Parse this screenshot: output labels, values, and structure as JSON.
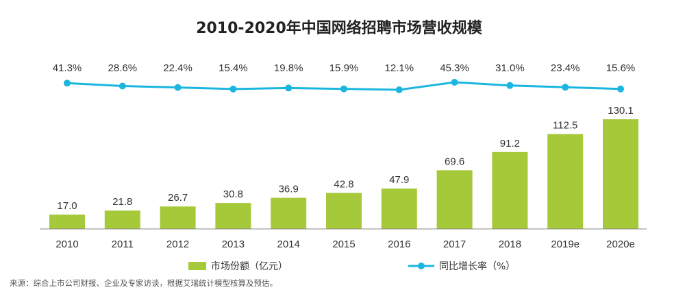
{
  "chart_data": {
    "type": "bar",
    "title": "2010-2020年中国网络招聘市场营收规模",
    "categories": [
      "2010",
      "2011",
      "2012",
      "2013",
      "2014",
      "2015",
      "2016",
      "2017",
      "2018",
      "2019e",
      "2020e"
    ],
    "series": [
      {
        "name": "市场份额（亿元）",
        "type": "bar",
        "color": "#a6c93a",
        "values": [
          17.0,
          21.8,
          26.7,
          30.8,
          36.9,
          42.8,
          47.9,
          69.6,
          91.2,
          112.5,
          130.1
        ],
        "labels": [
          "17.0",
          "21.8",
          "26.7",
          "30.8",
          "36.9",
          "42.8",
          "47.9",
          "69.6",
          "91.2",
          "112.5",
          "130.1"
        ]
      },
      {
        "name": "同比增长率（%）",
        "type": "line",
        "color": "#1ab6e0",
        "values": [
          41.3,
          28.6,
          22.4,
          15.4,
          19.8,
          15.9,
          12.1,
          45.3,
          31.0,
          23.4,
          15.6
        ],
        "labels": [
          "41.3%",
          "28.6%",
          "22.4%",
          "15.4%",
          "19.8%",
          "15.9%",
          "12.1%",
          "45.3%",
          "31.0%",
          "23.4%",
          "15.6%"
        ]
      }
    ],
    "ylim": [
      0,
      140
    ],
    "y2lim": [
      0,
      50
    ],
    "grid": false,
    "legend_position": "bottom",
    "source": "来源：综合上市公司财报、企业及专家访谈，根据艾瑞统计模型核算及预估。"
  },
  "colors": {
    "bar": "#a6c93a",
    "line": "#1ab6e0",
    "axis": "#888888",
    "text": "#333333"
  }
}
